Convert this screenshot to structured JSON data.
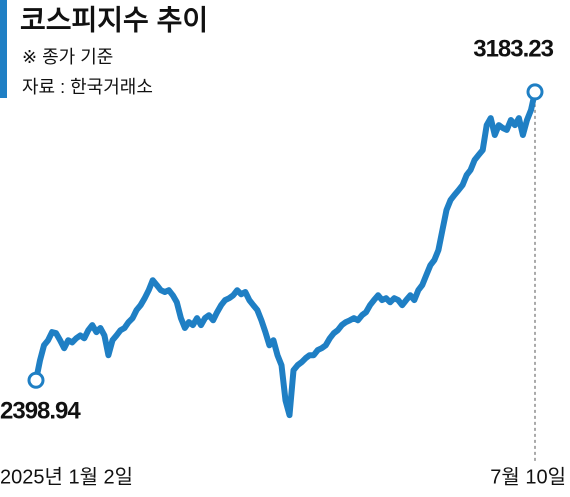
{
  "chart_data": {
    "type": "line",
    "title": "코스피지수 추이",
    "note": "※ 종가 기준",
    "source": "자료 : 한국거래소",
    "color": "#1f7fc4",
    "ylim": [
      2250,
      3300
    ],
    "categories": [
      "2025년 1월 2일",
      null,
      null,
      null,
      null,
      null,
      null,
      null,
      null,
      null,
      null,
      null,
      null,
      null,
      null,
      null,
      null,
      null,
      null,
      null,
      null,
      null,
      null,
      null,
      null,
      null,
      null,
      null,
      null,
      null,
      null,
      null,
      null,
      null,
      null,
      null,
      null,
      null,
      null,
      null,
      null,
      null,
      null,
      null,
      null,
      null,
      null,
      null,
      null,
      null,
      null,
      null,
      null,
      null,
      null,
      null,
      null,
      null,
      null,
      null,
      null,
      null,
      null,
      null,
      null,
      null,
      null,
      null,
      null,
      null,
      null,
      null,
      null,
      null,
      null,
      null,
      null,
      null,
      null,
      null,
      null,
      null,
      null,
      null,
      null,
      null,
      null,
      null,
      null,
      null,
      null,
      null,
      null,
      null,
      null,
      null,
      null,
      null,
      null,
      null,
      null,
      null,
      null,
      null,
      null,
      null,
      null,
      null,
      null,
      null,
      null,
      null,
      null,
      null,
      null,
      null,
      null,
      null,
      null,
      null,
      null,
      null,
      null,
      null,
      "7월 10일"
    ],
    "values": [
      2398.94,
      2453,
      2494,
      2508,
      2530,
      2527,
      2508,
      2486,
      2508,
      2502,
      2513,
      2521,
      2513,
      2535,
      2549,
      2530,
      2541,
      2521,
      2467,
      2508,
      2521,
      2535,
      2541,
      2557,
      2568,
      2590,
      2603,
      2622,
      2644,
      2671,
      2658,
      2644,
      2639,
      2644,
      2630,
      2611,
      2568,
      2541,
      2557,
      2549,
      2568,
      2549,
      2568,
      2576,
      2562,
      2584,
      2603,
      2617,
      2622,
      2630,
      2644,
      2633,
      2639,
      2617,
      2603,
      2590,
      2562,
      2530,
      2494,
      2508,
      2467,
      2440,
      2344,
      2304,
      2426,
      2440,
      2448,
      2459,
      2467,
      2467,
      2481,
      2486,
      2494,
      2513,
      2527,
      2535,
      2549,
      2557,
      2562,
      2568,
      2562,
      2576,
      2584,
      2603,
      2617,
      2630,
      2617,
      2622,
      2611,
      2622,
      2617,
      2603,
      2617,
      2630,
      2617,
      2644,
      2658,
      2685,
      2712,
      2726,
      2753,
      2807,
      2862,
      2889,
      2903,
      2916,
      2930,
      2957,
      2971,
      2998,
      3012,
      3025,
      3093,
      3112,
      3066,
      3093,
      3085,
      3080,
      3107,
      3093,
      3112,
      3066,
      3107,
      3134,
      3183.23
    ]
  }
}
